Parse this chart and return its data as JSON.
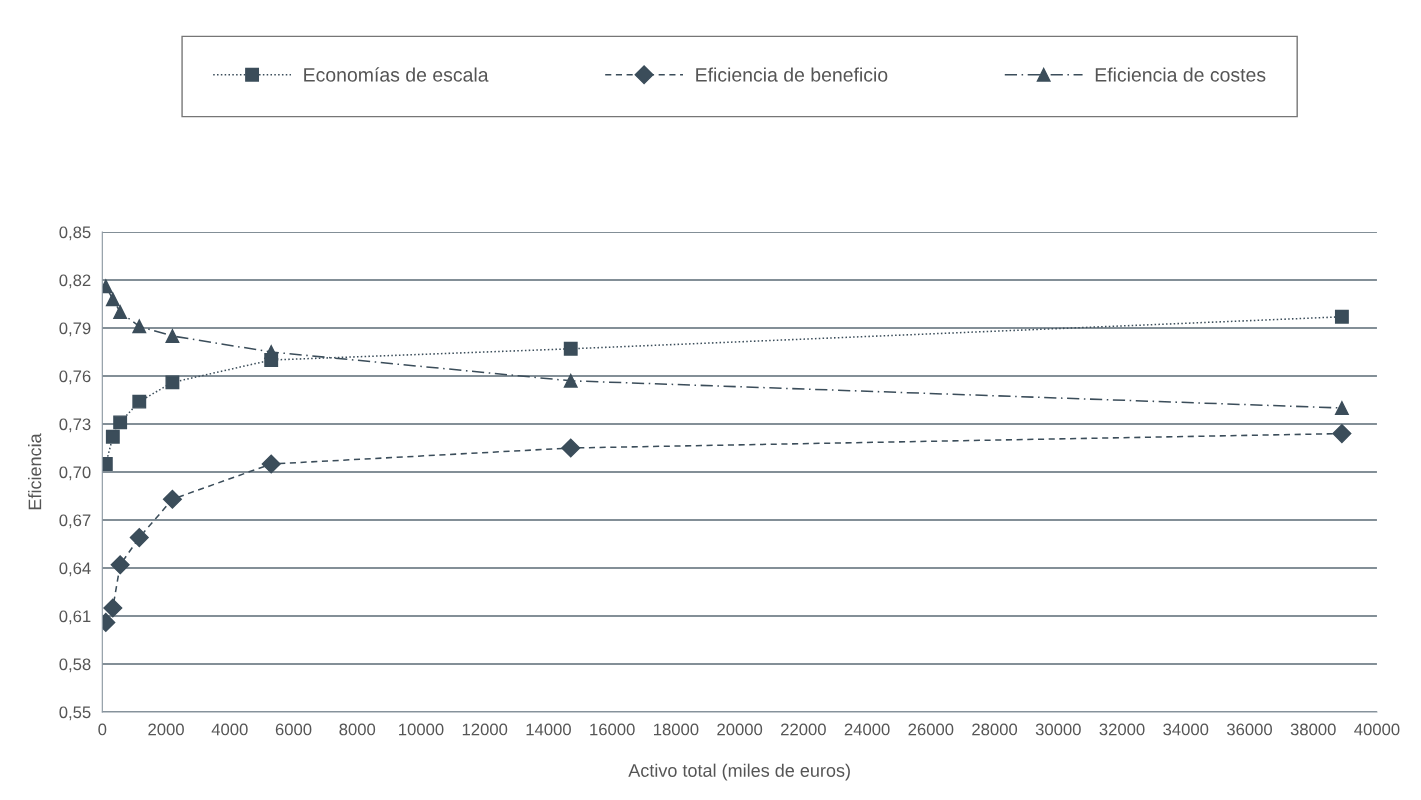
{
  "chart_data": {
    "type": "line",
    "xlabel": "Activo total (miles de euros)",
    "ylabel": "Eficiencia",
    "xlim": [
      0,
      40000
    ],
    "xticks": [
      0,
      2000,
      4000,
      6000,
      8000,
      10000,
      12000,
      14000,
      16000,
      18000,
      20000,
      22000,
      24000,
      26000,
      28000,
      30000,
      32000,
      34000,
      36000,
      38000,
      40000
    ],
    "ylim": [
      0.55,
      0.85
    ],
    "yticks": [
      {
        "value": 0.55,
        "label": "0,55"
      },
      {
        "value": 0.58,
        "label": "0,58"
      },
      {
        "value": 0.61,
        "label": "0,61"
      },
      {
        "value": 0.64,
        "label": "0,64"
      },
      {
        "value": 0.67,
        "label": "0,67"
      },
      {
        "value": 0.7,
        "label": "0,70"
      },
      {
        "value": 0.73,
        "label": "0,73"
      },
      {
        "value": 0.76,
        "label": "0,76"
      },
      {
        "value": 0.79,
        "label": "0,79"
      },
      {
        "value": 0.82,
        "label": "0,82"
      },
      {
        "value": 0.85,
        "label": "0,85"
      }
    ],
    "grid": "y",
    "legend": "top",
    "series": [
      {
        "name": "Economías de escala",
        "color": "#3b4d5a",
        "marker": "square",
        "line_style": "dotted",
        "x": [
          110,
          330,
          560,
          1160,
          2200,
          5300,
          14700,
          38900
        ],
        "values": [
          0.705,
          0.722,
          0.731,
          0.744,
          0.756,
          0.77,
          0.777,
          0.797
        ]
      },
      {
        "name": "Eficiencia de beneficio",
        "color": "#3b4d5a",
        "marker": "diamond",
        "line_style": "dashed",
        "x": [
          110,
          330,
          560,
          1160,
          2200,
          5300,
          14700,
          38900
        ],
        "values": [
          0.606,
          0.615,
          0.642,
          0.659,
          0.683,
          0.705,
          0.715,
          0.724
        ]
      },
      {
        "name": "Eficiencia de costes",
        "color": "#3b4d5a",
        "marker": "triangle",
        "line_style": "dashdot",
        "x": [
          110,
          330,
          560,
          1160,
          2200,
          5300,
          14700,
          38900
        ],
        "values": [
          0.816,
          0.808,
          0.8,
          0.791,
          0.785,
          0.775,
          0.757,
          0.74
        ]
      }
    ]
  }
}
